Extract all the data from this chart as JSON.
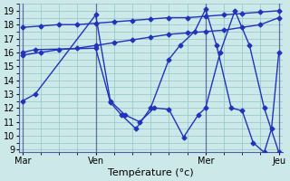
{
  "bg_color": "#cce8e8",
  "grid_color": "#99cccc",
  "line_color": "#2233bb",
  "marker": "D",
  "markersize": 2.5,
  "linewidth": 1.0,
  "xlabel": "Température (°c)",
  "ylim": [
    8.8,
    19.5
  ],
  "yticks": [
    9,
    10,
    11,
    12,
    13,
    14,
    15,
    16,
    17,
    18,
    19
  ],
  "xlim": [
    -0.1,
    7.1
  ],
  "day_positions": [
    0,
    2,
    5,
    7
  ],
  "day_labels": [
    "Mar",
    "Ven",
    "Mer",
    "Jeu"
  ],
  "series": [
    {
      "x": [
        0,
        0.35,
        2.0,
        2.4,
        2.8,
        3.2,
        3.6,
        4.0,
        4.4,
        4.8,
        5.0,
        5.4,
        5.8,
        6.2,
        6.6,
        7.0
      ],
      "y": [
        12.5,
        13.0,
        18.7,
        12.5,
        11.5,
        11.0,
        12.0,
        11.9,
        9.9,
        11.5,
        12.0,
        16.0,
        19.0,
        16.5,
        12.0,
        8.8
      ]
    },
    {
      "x": [
        0,
        0.5,
        1.0,
        1.5,
        2.0,
        2.5,
        3.0,
        3.5,
        4.0,
        4.5,
        5.0,
        5.5,
        6.0,
        6.5,
        7.0
      ],
      "y": [
        17.8,
        17.9,
        18.0,
        18.0,
        18.1,
        18.2,
        18.3,
        18.4,
        18.5,
        18.5,
        18.6,
        18.7,
        18.8,
        18.9,
        19.0
      ]
    },
    {
      "x": [
        0,
        0.5,
        1.0,
        1.5,
        2.0,
        2.5,
        3.0,
        3.5,
        4.0,
        4.5,
        5.0,
        5.5,
        6.0,
        6.5,
        7.0
      ],
      "y": [
        15.8,
        16.0,
        16.2,
        16.3,
        16.5,
        16.7,
        16.9,
        17.1,
        17.3,
        17.4,
        17.5,
        17.6,
        17.8,
        18.0,
        18.5
      ]
    },
    {
      "x": [
        0,
        0.35,
        2.0,
        2.4,
        2.7,
        3.1,
        3.5,
        4.0,
        4.3,
        4.7,
        5.0,
        5.3,
        5.7,
        6.0,
        6.3,
        6.6,
        6.8,
        7.0
      ],
      "y": [
        16.0,
        16.2,
        16.3,
        12.4,
        11.5,
        10.5,
        12.0,
        15.5,
        16.5,
        17.5,
        19.1,
        16.5,
        12.0,
        11.8,
        9.5,
        8.8,
        10.5,
        16.0
      ]
    }
  ]
}
